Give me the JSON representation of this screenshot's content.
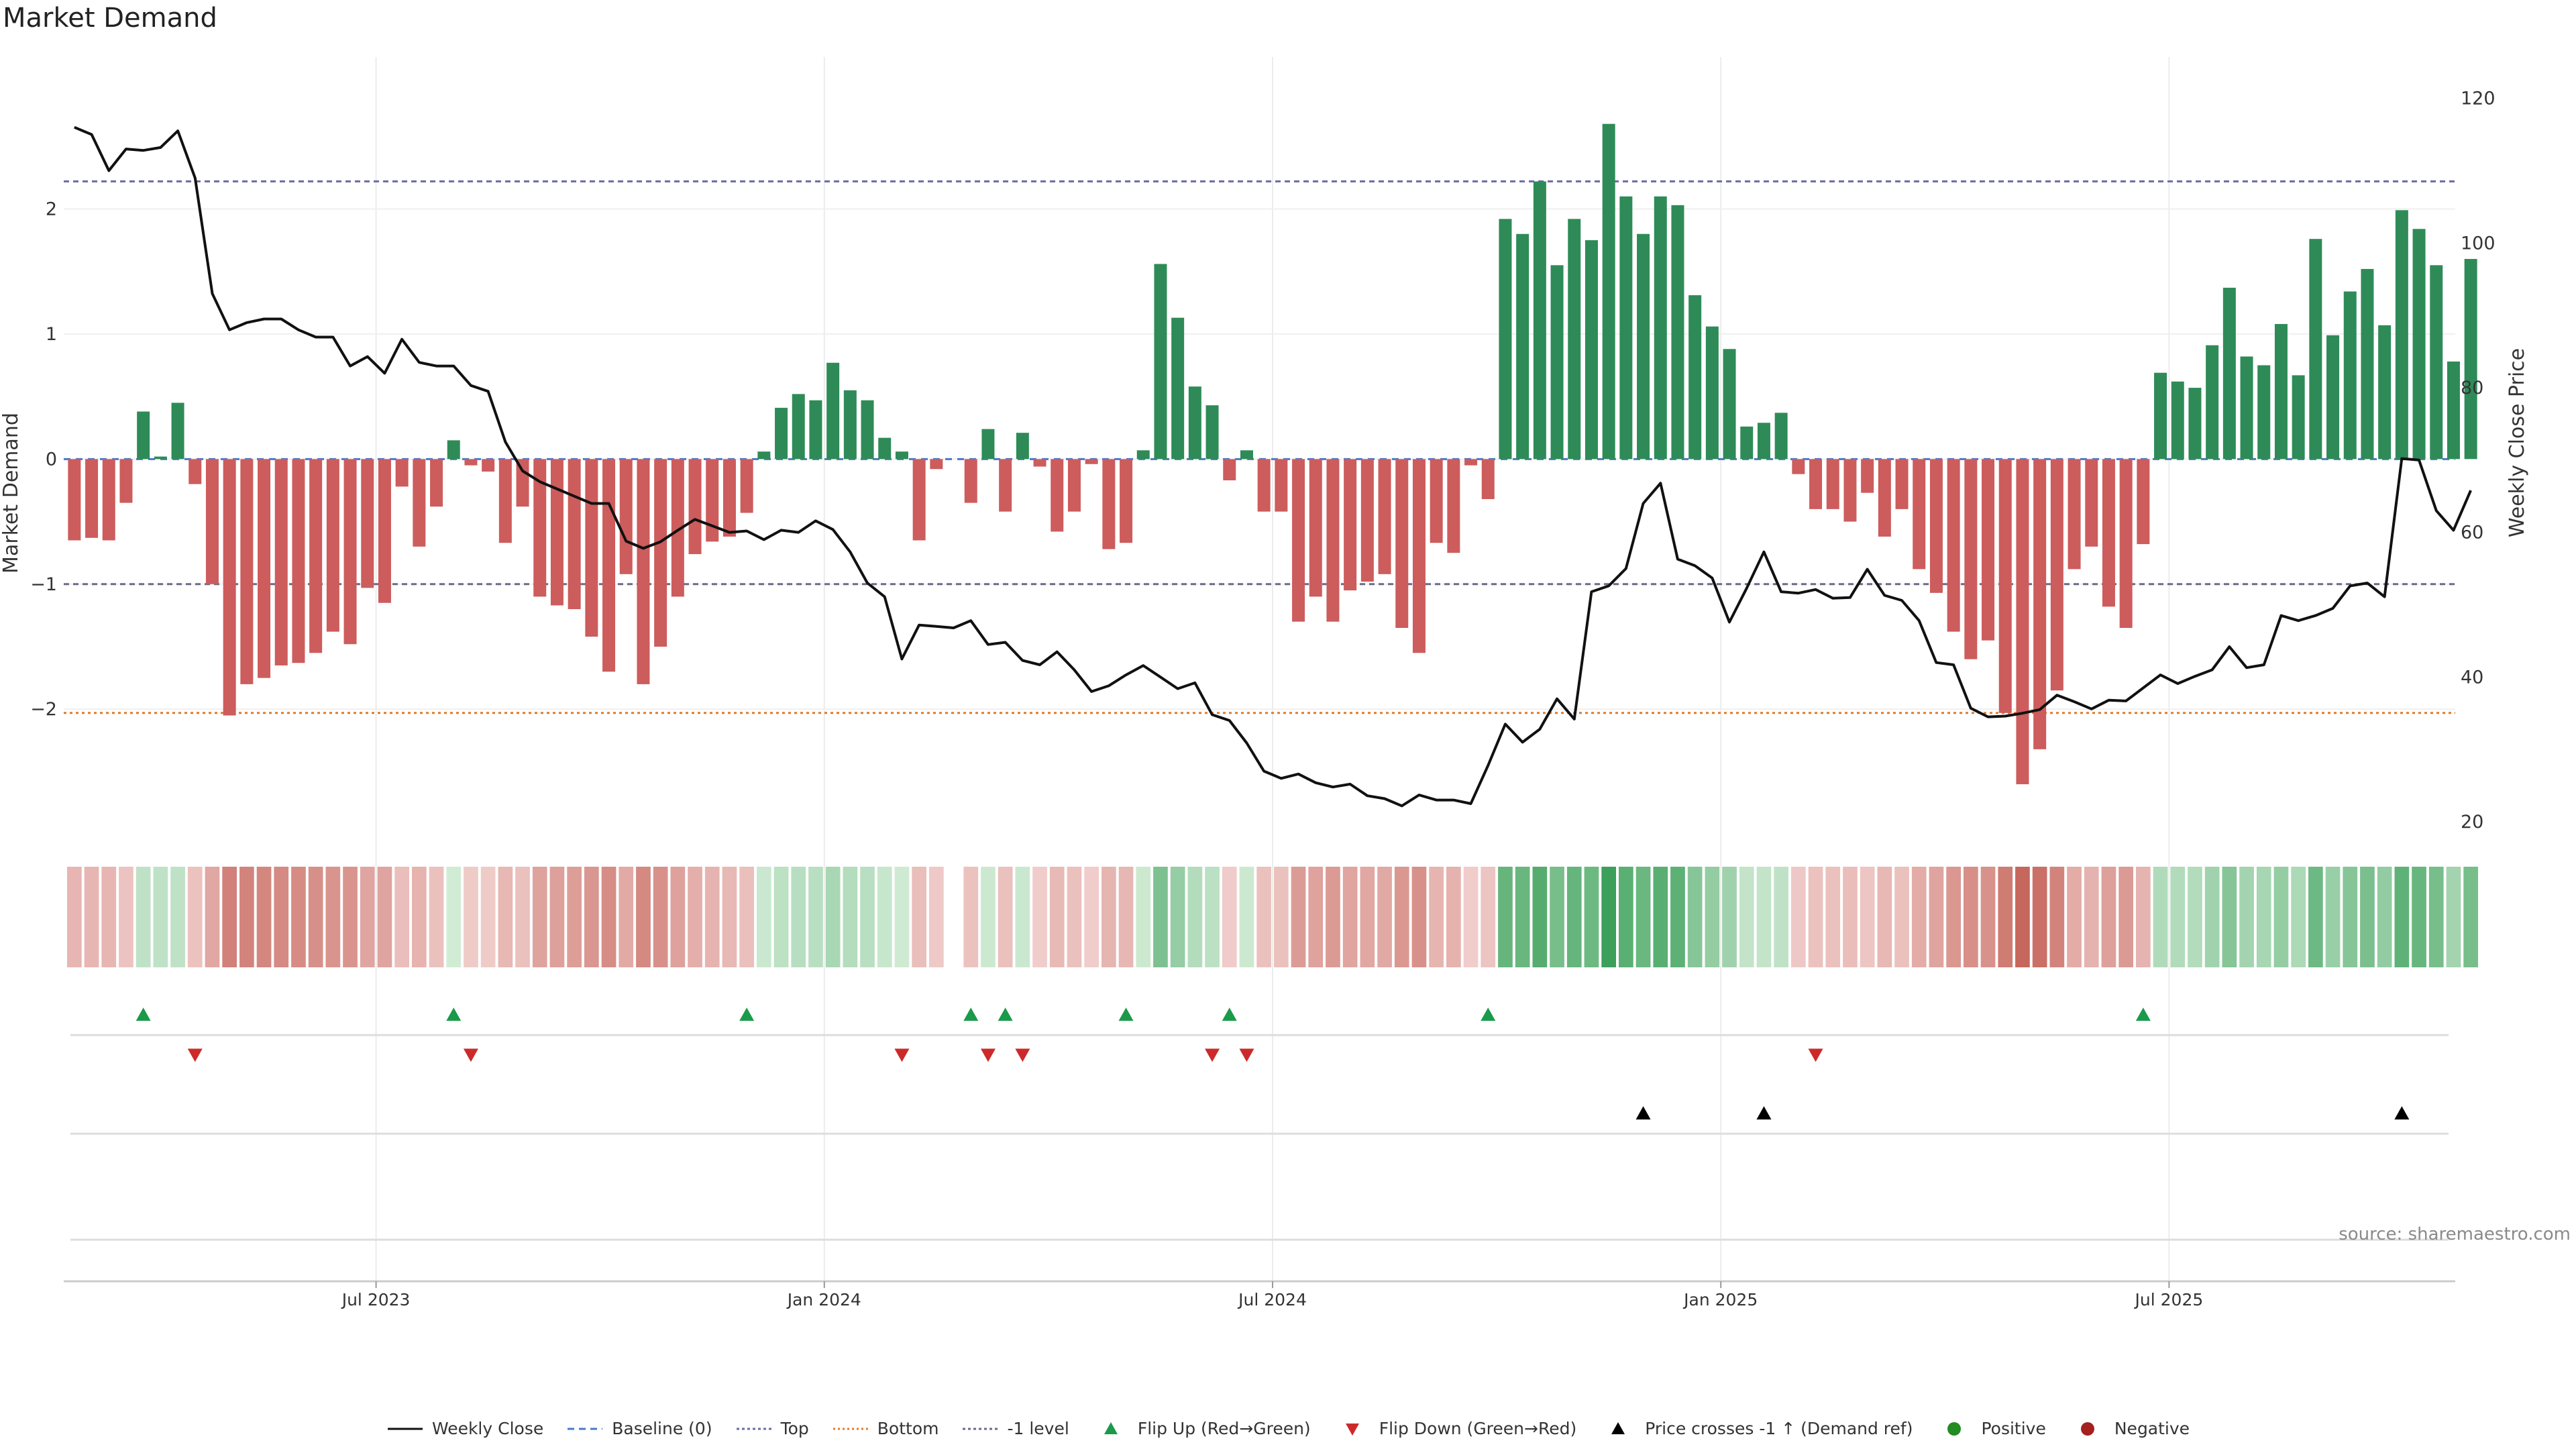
{
  "title": "Market Demand",
  "source": "source: sharemaestro.com",
  "colors": {
    "positive": "#2e8b57",
    "negative": "#cd5c5c",
    "price": "#111111",
    "top": "#6a6aa8",
    "bottom": "#e07b28",
    "minus1": "#6a6a8a",
    "flipUp": "#1a9a4a",
    "flipDown": "#cc2a2a",
    "cross": "#000000"
  },
  "chart_data": {
    "type": "bar",
    "title": "Market Demand",
    "ylabel": "Market Demand",
    "y2label": "Weekly Close Price",
    "ylim": [
      -2.9,
      3.0
    ],
    "y2lim": [
      20,
      122
    ],
    "yticks": [
      {
        "v": 2,
        "label": "2"
      },
      {
        "v": 1,
        "label": "1"
      },
      {
        "v": 0,
        "label": "0"
      },
      {
        "v": -1,
        "label": "−1"
      },
      {
        "v": -2,
        "label": "−2"
      }
    ],
    "y2ticks": [
      {
        "v": 120,
        "label": "120"
      },
      {
        "v": 100,
        "label": "100"
      },
      {
        "v": 80,
        "label": "80"
      },
      {
        "v": 60,
        "label": "60"
      },
      {
        "v": 40,
        "label": "40"
      },
      {
        "v": 20,
        "label": "20"
      }
    ],
    "xticks": [
      {
        "i": 18,
        "label": "Jul 2023"
      },
      {
        "i": 44,
        "label": "Jan 2024"
      },
      {
        "i": 70,
        "label": "Jul 2024"
      },
      {
        "i": 96,
        "label": "Jan 2025"
      },
      {
        "i": 122,
        "label": "Jul 2025"
      }
    ],
    "levels": {
      "top": 2.22,
      "bottom": -2.03,
      "minus1": -1.0,
      "baseline": 0
    },
    "demand": [
      -0.65,
      -0.63,
      -0.65,
      -0.35,
      0.38,
      0.02,
      0.45,
      -0.2,
      -1.0,
      -2.05,
      -1.8,
      -1.75,
      -1.65,
      -1.63,
      -1.55,
      -1.38,
      -1.48,
      -1.03,
      -1.15,
      -0.22,
      -0.7,
      -0.38,
      0.15,
      -0.05,
      -0.1,
      -0.67,
      -0.38,
      -1.1,
      -1.17,
      -1.2,
      -1.42,
      -1.7,
      -0.92,
      -1.8,
      -1.5,
      -1.1,
      -0.76,
      -0.66,
      -0.62,
      -0.43,
      0.06,
      0.41,
      0.52,
      0.47,
      0.77,
      0.55,
      0.47,
      0.17,
      0.06,
      -0.65,
      -0.08,
      null,
      -0.35,
      0.24,
      -0.42,
      0.21,
      -0.06,
      -0.58,
      -0.42,
      -0.04,
      -0.72,
      -0.67,
      0.07,
      1.56,
      1.13,
      0.58,
      0.43,
      -0.17,
      0.07,
      -0.42,
      -0.42,
      -1.3,
      -1.1,
      -1.3,
      -1.05,
      -0.98,
      -0.92,
      -1.35,
      -1.55,
      -0.67,
      -0.75,
      -0.05,
      -0.32,
      1.92,
      1.8,
      2.22,
      1.55,
      1.92,
      1.75,
      2.68,
      2.1,
      1.8,
      2.1,
      2.03,
      1.31,
      1.06,
      0.88,
      0.26,
      0.29,
      0.37,
      -0.12,
      -0.4,
      -0.4,
      -0.5,
      -0.27,
      -0.62,
      -0.4,
      -0.88,
      -1.07,
      -1.38,
      -1.6,
      -1.45,
      -2.03,
      -2.6,
      -2.32,
      -1.85,
      -0.88,
      -0.7,
      -1.18,
      -1.35,
      -0.68,
      0.69,
      0.62,
      0.57,
      0.91,
      1.37,
      0.82,
      0.75,
      1.08,
      0.67,
      1.76,
      0.99,
      1.34,
      1.52,
      1.07,
      1.99,
      1.84,
      1.55,
      0.78,
      1.6
    ],
    "price": [
      116,
      115,
      110,
      113,
      112.8,
      113.2,
      115.5,
      109,
      93,
      88,
      89,
      89.5,
      89.5,
      88,
      87,
      87,
      83,
      84.3,
      82,
      86.7,
      83.5,
      83,
      83,
      80.3,
      79.5,
      72.5,
      68.5,
      67,
      66,
      65,
      64,
      64,
      58.8,
      57.8,
      58.7,
      60.3,
      61.8,
      60.9,
      60,
      60.2,
      59,
      60.3,
      60,
      61.6,
      60.4,
      57.3,
      53,
      51.1,
      42.5,
      47.2,
      47,
      46.8,
      47.8,
      44.5,
      44.8,
      42.3,
      41.7,
      43.5,
      41,
      38,
      38.8,
      40.3,
      41.6,
      40,
      38.4,
      39.2,
      34.8,
      34,
      30.9,
      27,
      26,
      26.6,
      25.4,
      24.8,
      25.2,
      23.6,
      23.2,
      22.2,
      23.7,
      23,
      23,
      22.5,
      27.8,
      33.5,
      31,
      32.8,
      37,
      34.2,
      51.8,
      52.6,
      55,
      64,
      66.8,
      56.3,
      55.4,
      53.7,
      47.6,
      52.3,
      57.3,
      51.8,
      51.6,
      52.1,
      50.9,
      51,
      54.9,
      51.3,
      50.6,
      47.8,
      42,
      41.7,
      35.7,
      34.5,
      34.6,
      35,
      35.5,
      37.5,
      36.6,
      35.6,
      36.8,
      36.7,
      38.5,
      40.3,
      39.1,
      40.1,
      41,
      44.2,
      41.3,
      41.7,
      48.5,
      47.8,
      48.5,
      49.5,
      52.6,
      53,
      51.1,
      70.2,
      70,
      63,
      60.3,
      65.8
    ],
    "heat": [
      -0.64,
      -0.64,
      -0.64,
      -0.34,
      0.38,
      0.38,
      0.38,
      -0.36,
      -0.99,
      -1.88,
      -1.8,
      -1.74,
      -1.67,
      -1.61,
      -1.52,
      -1.44,
      -1.43,
      -1.04,
      -1.06,
      -0.46,
      -0.71,
      -0.39,
      0.08,
      -0.17,
      -0.17,
      -0.6,
      -0.4,
      -1.08,
      -1.16,
      -1.2,
      -1.39,
      -1.6,
      -0.93,
      -1.7,
      -1.5,
      -1.13,
      -0.8,
      -0.7,
      -0.6,
      -0.43,
      0.2,
      0.43,
      0.5,
      0.48,
      0.74,
      0.55,
      0.48,
      0.24,
      0.12,
      -0.47,
      -0.2,
      null,
      -0.36,
      0.17,
      -0.4,
      0.19,
      -0.12,
      -0.55,
      -0.4,
      -0.12,
      -0.68,
      -0.63,
      0.17,
      1.43,
      1.05,
      0.58,
      0.44,
      -0.15,
      0.17,
      -0.39,
      -0.39,
      -1.25,
      -1.1,
      -1.29,
      -1.05,
      -0.98,
      -0.94,
      -1.35,
      -1.5,
      -0.68,
      -0.73,
      -0.14,
      -0.32,
      1.82,
      1.77,
      2.1,
      1.55,
      1.83,
      1.71,
      2.5,
      2.02,
      1.76,
      2.03,
      1.97,
      1.3,
      1.06,
      0.89,
      0.31,
      0.31,
      0.38,
      -0.22,
      -0.38,
      -0.4,
      -0.48,
      -0.3,
      -0.6,
      -0.4,
      -0.88,
      -1.06,
      -1.35,
      -1.56,
      -1.47,
      -2.0,
      -2.48,
      -2.26,
      -1.8,
      -0.88,
      -0.72,
      -1.15,
      -1.3,
      -0.7,
      0.62,
      0.6,
      0.58,
      0.87,
      1.32,
      0.82,
      0.76,
      1.06,
      0.68,
      1.7,
      0.99,
      1.3,
      1.5,
      1.08,
      1.93,
      1.8,
      1.55,
      0.82,
      1.55
    ],
    "flip_up": [
      4,
      22,
      39,
      52,
      54,
      61,
      67,
      82,
      120
    ],
    "flip_down": [
      7,
      23,
      48,
      53,
      55,
      66,
      68,
      101
    ],
    "price_cross": [
      91,
      98,
      135
    ]
  },
  "legend": [
    {
      "key": "price",
      "label": "Weekly Close"
    },
    {
      "key": "baseline",
      "label": "Baseline (0)"
    },
    {
      "key": "top",
      "label": "Top"
    },
    {
      "key": "bottom",
      "label": "Bottom"
    },
    {
      "key": "minus1",
      "label": "-1 level"
    },
    {
      "key": "flipUp",
      "label": "Flip Up (Red→Green)"
    },
    {
      "key": "flipDown",
      "label": "Flip Down (Green→Red)"
    },
    {
      "key": "cross",
      "label": "Price crosses -1 ↑ (Demand ref)"
    },
    {
      "key": "positive",
      "label": "Positive"
    },
    {
      "key": "negative",
      "label": "Negative"
    }
  ]
}
